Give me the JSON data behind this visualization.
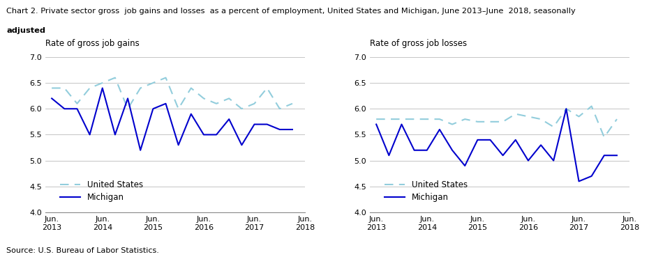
{
  "title_line1": "Chart 2. Private sector gross  job gains and losses  as a percent of employment, United States and Michigan, June 2013–June  2018, seasonally",
  "title_line2": "adjusted",
  "left_label": "Rate of gross job gains",
  "right_label": "Rate of gross job losses",
  "source": "Source: U.S. Bureau of Labor Statistics.",
  "x_labels": [
    "Jun.\n2013",
    "Jun.\n2014",
    "Jun.\n2015",
    "Jun.\n2016",
    "Jun.\n2017",
    "Jun.\n2018"
  ],
  "x_positions": [
    0,
    4,
    8,
    12,
    16,
    20
  ],
  "ylim": [
    4.0,
    7.0
  ],
  "yticks": [
    4.0,
    4.5,
    5.0,
    5.5,
    6.0,
    6.5,
    7.0
  ],
  "gains_us": [
    6.4,
    6.4,
    6.1,
    6.4,
    6.5,
    6.6,
    6.0,
    6.4,
    6.5,
    6.6,
    6.0,
    6.4,
    6.2,
    6.1,
    6.2,
    6.0,
    6.1,
    6.4,
    6.0,
    6.1
  ],
  "gains_mi": [
    6.2,
    6.0,
    6.0,
    5.5,
    6.4,
    5.5,
    6.2,
    5.2,
    6.0,
    6.1,
    5.3,
    5.9,
    5.5,
    5.5,
    5.8,
    5.3,
    5.7,
    5.7,
    5.6,
    5.6
  ],
  "losses_us": [
    5.8,
    5.8,
    5.8,
    5.8,
    5.8,
    5.8,
    5.7,
    5.8,
    5.75,
    5.75,
    5.75,
    5.9,
    5.85,
    5.8,
    5.65,
    6.0,
    5.85,
    6.05,
    5.45,
    5.8
  ],
  "losses_mi": [
    5.7,
    5.1,
    5.7,
    5.2,
    5.2,
    5.6,
    5.2,
    4.9,
    5.4,
    5.4,
    5.1,
    5.4,
    5.0,
    5.3,
    5.0,
    6.0,
    4.6,
    4.7,
    5.1,
    5.1
  ],
  "us_color": "#92CDDC",
  "mi_color": "#0000CD",
  "linewidth": 1.5,
  "legend_us": "United States",
  "legend_mi": "Michigan"
}
